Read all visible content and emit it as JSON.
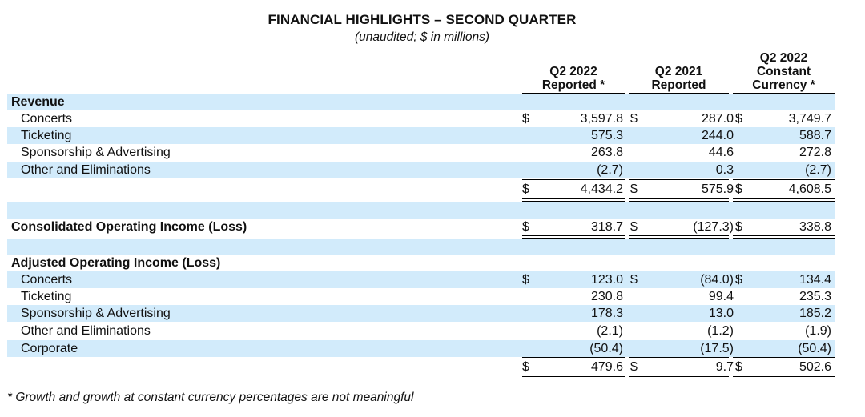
{
  "header": {
    "title": "FINANCIAL HIGHLIGHTS – SECOND QUARTER",
    "subtitle": "(unaudited; $ in millions)"
  },
  "columns": [
    {
      "line1": "",
      "line2": "Q2 2022",
      "line3": "Reported *"
    },
    {
      "line1": "",
      "line2": "Q2 2021",
      "line3": "Reported"
    },
    {
      "line1": "Q2 2022",
      "line2": "Constant",
      "line3": "Currency *"
    }
  ],
  "currency_symbol": "$",
  "sections": {
    "revenue": {
      "heading": "Revenue",
      "rows": [
        {
          "label": "Concerts",
          "values": [
            "3,597.8",
            "287.0",
            "3,749.7"
          ]
        },
        {
          "label": "Ticketing",
          "values": [
            "575.3",
            "244.0",
            "588.7"
          ]
        },
        {
          "label": "Sponsorship & Advertising",
          "values": [
            "263.8",
            "44.6",
            "272.8"
          ]
        },
        {
          "label": "Other and Eliminations",
          "values": [
            "(2.7)",
            "0.3",
            "(2.7)"
          ]
        }
      ],
      "total": [
        "4,434.2",
        "575.9",
        "4,608.5"
      ]
    },
    "consolidated": {
      "label": "Consolidated Operating Income (Loss)",
      "values": [
        "318.7",
        "(127.3)",
        "338.8"
      ]
    },
    "adjusted": {
      "heading": "Adjusted Operating Income (Loss)",
      "rows": [
        {
          "label": "Concerts",
          "values": [
            "123.0",
            "(84.0)",
            "134.4"
          ]
        },
        {
          "label": "Ticketing",
          "values": [
            "230.8",
            "99.4",
            "235.3"
          ]
        },
        {
          "label": "Sponsorship & Advertising",
          "values": [
            "178.3",
            "13.0",
            "185.2"
          ]
        },
        {
          "label": "Other and Eliminations",
          "values": [
            "(2.1)",
            "(1.2)",
            "(1.9)"
          ]
        },
        {
          "label": "Corporate",
          "values": [
            "(50.4)",
            "(17.5)",
            "(50.4)"
          ]
        }
      ],
      "total": [
        "479.6",
        "9.7",
        "502.6"
      ]
    }
  },
  "footnote": "* Growth and growth at constant currency percentages are not meaningful",
  "colors": {
    "row_shade": "#d2ebfb",
    "text": "#111111"
  }
}
